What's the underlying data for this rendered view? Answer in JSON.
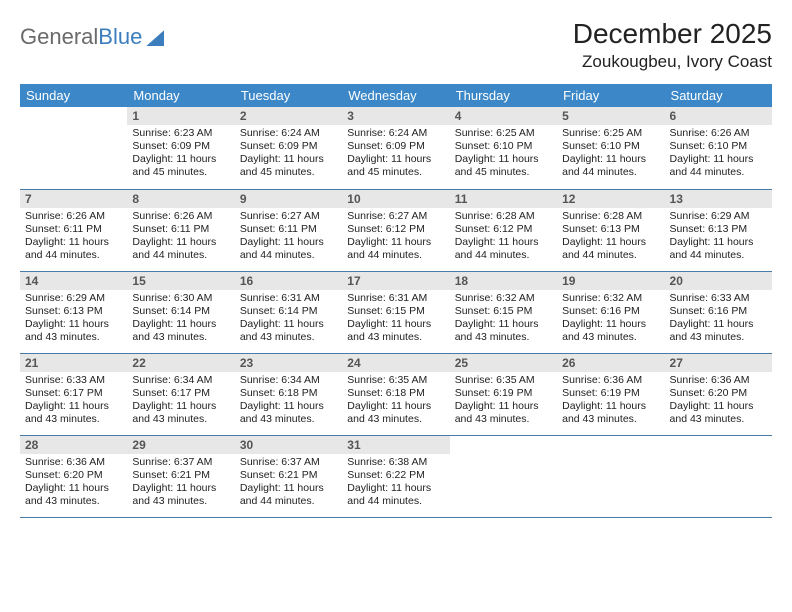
{
  "logo": {
    "part1": "General",
    "part2": "Blue"
  },
  "title": "December 2025",
  "location": "Zoukougbeu, Ivory Coast",
  "header_bg": "#3b87c8",
  "header_fg": "#ffffff",
  "daynum_bg": "#e7e7e7",
  "border_color": "#4a7ba8",
  "weekdays": [
    "Sunday",
    "Monday",
    "Tuesday",
    "Wednesday",
    "Thursday",
    "Friday",
    "Saturday"
  ],
  "first_weekday_index": 1,
  "days": [
    {
      "n": 1,
      "sunrise": "6:23 AM",
      "sunset": "6:09 PM",
      "dl_h": 11,
      "dl_m": 45
    },
    {
      "n": 2,
      "sunrise": "6:24 AM",
      "sunset": "6:09 PM",
      "dl_h": 11,
      "dl_m": 45
    },
    {
      "n": 3,
      "sunrise": "6:24 AM",
      "sunset": "6:09 PM",
      "dl_h": 11,
      "dl_m": 45
    },
    {
      "n": 4,
      "sunrise": "6:25 AM",
      "sunset": "6:10 PM",
      "dl_h": 11,
      "dl_m": 45
    },
    {
      "n": 5,
      "sunrise": "6:25 AM",
      "sunset": "6:10 PM",
      "dl_h": 11,
      "dl_m": 44
    },
    {
      "n": 6,
      "sunrise": "6:26 AM",
      "sunset": "6:10 PM",
      "dl_h": 11,
      "dl_m": 44
    },
    {
      "n": 7,
      "sunrise": "6:26 AM",
      "sunset": "6:11 PM",
      "dl_h": 11,
      "dl_m": 44
    },
    {
      "n": 8,
      "sunrise": "6:26 AM",
      "sunset": "6:11 PM",
      "dl_h": 11,
      "dl_m": 44
    },
    {
      "n": 9,
      "sunrise": "6:27 AM",
      "sunset": "6:11 PM",
      "dl_h": 11,
      "dl_m": 44
    },
    {
      "n": 10,
      "sunrise": "6:27 AM",
      "sunset": "6:12 PM",
      "dl_h": 11,
      "dl_m": 44
    },
    {
      "n": 11,
      "sunrise": "6:28 AM",
      "sunset": "6:12 PM",
      "dl_h": 11,
      "dl_m": 44
    },
    {
      "n": 12,
      "sunrise": "6:28 AM",
      "sunset": "6:13 PM",
      "dl_h": 11,
      "dl_m": 44
    },
    {
      "n": 13,
      "sunrise": "6:29 AM",
      "sunset": "6:13 PM",
      "dl_h": 11,
      "dl_m": 44
    },
    {
      "n": 14,
      "sunrise": "6:29 AM",
      "sunset": "6:13 PM",
      "dl_h": 11,
      "dl_m": 43
    },
    {
      "n": 15,
      "sunrise": "6:30 AM",
      "sunset": "6:14 PM",
      "dl_h": 11,
      "dl_m": 43
    },
    {
      "n": 16,
      "sunrise": "6:31 AM",
      "sunset": "6:14 PM",
      "dl_h": 11,
      "dl_m": 43
    },
    {
      "n": 17,
      "sunrise": "6:31 AM",
      "sunset": "6:15 PM",
      "dl_h": 11,
      "dl_m": 43
    },
    {
      "n": 18,
      "sunrise": "6:32 AM",
      "sunset": "6:15 PM",
      "dl_h": 11,
      "dl_m": 43
    },
    {
      "n": 19,
      "sunrise": "6:32 AM",
      "sunset": "6:16 PM",
      "dl_h": 11,
      "dl_m": 43
    },
    {
      "n": 20,
      "sunrise": "6:33 AM",
      "sunset": "6:16 PM",
      "dl_h": 11,
      "dl_m": 43
    },
    {
      "n": 21,
      "sunrise": "6:33 AM",
      "sunset": "6:17 PM",
      "dl_h": 11,
      "dl_m": 43
    },
    {
      "n": 22,
      "sunrise": "6:34 AM",
      "sunset": "6:17 PM",
      "dl_h": 11,
      "dl_m": 43
    },
    {
      "n": 23,
      "sunrise": "6:34 AM",
      "sunset": "6:18 PM",
      "dl_h": 11,
      "dl_m": 43
    },
    {
      "n": 24,
      "sunrise": "6:35 AM",
      "sunset": "6:18 PM",
      "dl_h": 11,
      "dl_m": 43
    },
    {
      "n": 25,
      "sunrise": "6:35 AM",
      "sunset": "6:19 PM",
      "dl_h": 11,
      "dl_m": 43
    },
    {
      "n": 26,
      "sunrise": "6:36 AM",
      "sunset": "6:19 PM",
      "dl_h": 11,
      "dl_m": 43
    },
    {
      "n": 27,
      "sunrise": "6:36 AM",
      "sunset": "6:20 PM",
      "dl_h": 11,
      "dl_m": 43
    },
    {
      "n": 28,
      "sunrise": "6:36 AM",
      "sunset": "6:20 PM",
      "dl_h": 11,
      "dl_m": 43
    },
    {
      "n": 29,
      "sunrise": "6:37 AM",
      "sunset": "6:21 PM",
      "dl_h": 11,
      "dl_m": 43
    },
    {
      "n": 30,
      "sunrise": "6:37 AM",
      "sunset": "6:21 PM",
      "dl_h": 11,
      "dl_m": 44
    },
    {
      "n": 31,
      "sunrise": "6:38 AM",
      "sunset": "6:22 PM",
      "dl_h": 11,
      "dl_m": 44
    }
  ]
}
